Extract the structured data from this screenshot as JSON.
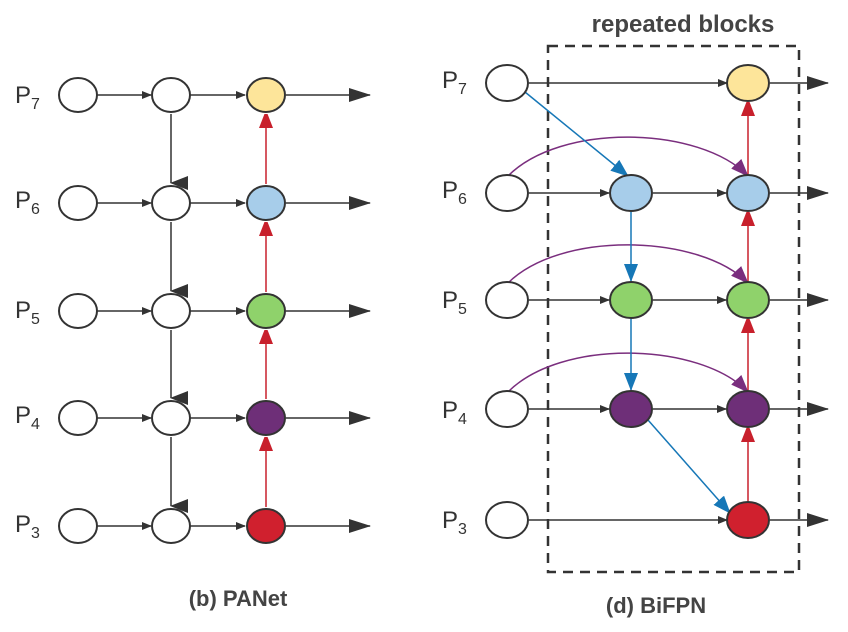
{
  "panet": {
    "caption": "(b) PANet",
    "levels": [
      {
        "base": "P",
        "sub": "7"
      },
      {
        "base": "P",
        "sub": "6"
      },
      {
        "base": "P",
        "sub": "5"
      },
      {
        "base": "P",
        "sub": "4"
      },
      {
        "base": "P",
        "sub": "3"
      }
    ]
  },
  "bifpn": {
    "caption": "(d) BiFPN",
    "box_label": "repeated blocks",
    "levels": [
      {
        "base": "P",
        "sub": "7"
      },
      {
        "base": "P",
        "sub": "6"
      },
      {
        "base": "P",
        "sub": "5"
      },
      {
        "base": "P",
        "sub": "4"
      },
      {
        "base": "P",
        "sub": "3"
      }
    ]
  },
  "colors": {
    "p7": "#fde59a",
    "p6": "#a7cdea",
    "p5": "#8fd26b",
    "p4": "#6e2f78",
    "p3": "#d0202e",
    "edge_black": "#333333",
    "edge_red": "#c8202c",
    "edge_blue": "#1677b7",
    "edge_purple": "#7a2e7e"
  }
}
